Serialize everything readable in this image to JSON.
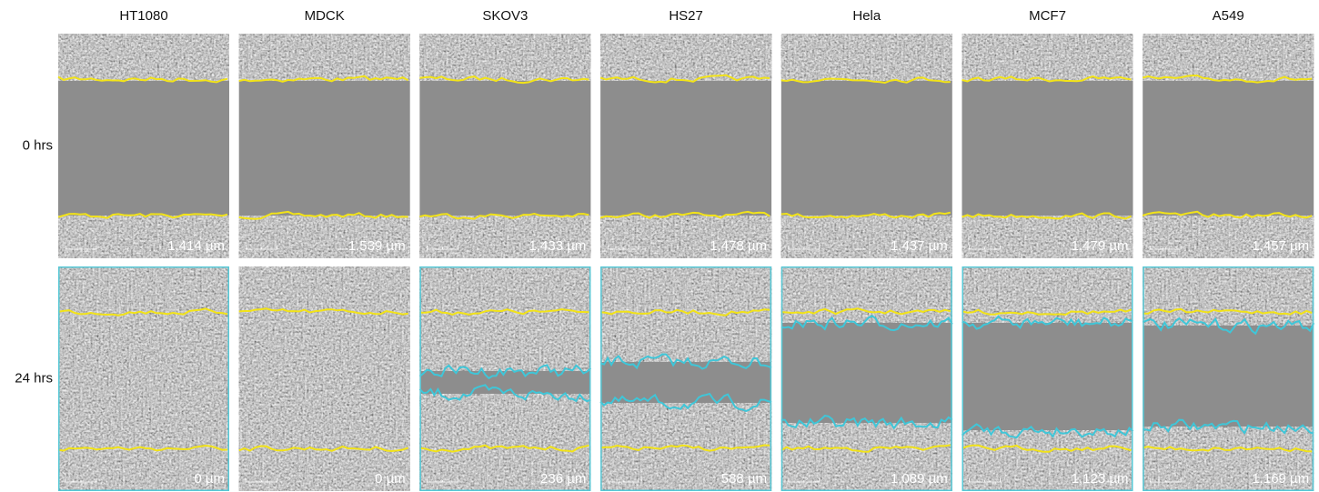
{
  "columns": [
    "HT1080",
    "MDCK",
    "SKOV3",
    "HS27",
    "Hela",
    "MCF7",
    "A549"
  ],
  "rows": [
    {
      "label": "0 hrs",
      "measurements": [
        "1,414 µm",
        "1,539 µm",
        "1,433 µm",
        "1,478 µm",
        "1,437 µm",
        "1,479 µm",
        "1,457 µm"
      ]
    },
    {
      "label": "24 hrs",
      "measurements": [
        "0 µm",
        "0 µm",
        "236 µm",
        "588 µm",
        "1,089 µm",
        "1,123 µm",
        "1,169 µm"
      ]
    }
  ]
}
